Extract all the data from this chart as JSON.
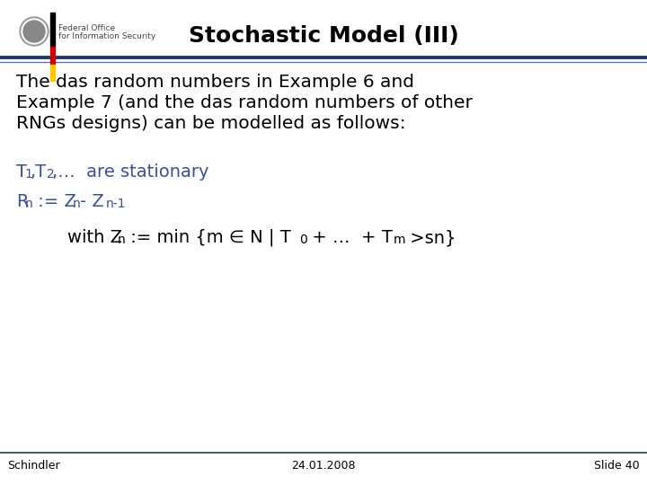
{
  "title": "Stochastic Model (III)",
  "title_fontsize": 18,
  "bg_color": "#ffffff",
  "title_color": "#000000",
  "header_line_color1": "#1f3864",
  "header_line_color2": "#4472c4",
  "body_text_line1": "The das random numbers in Example 6 and",
  "body_text_line2": "Example 7 (and the das random numbers of other",
  "body_text_line3": "RNGs designs) can be modelled as follows:",
  "body_fontsize": 14.5,
  "body_color": "#000000",
  "blue_color": "#3b4f9c",
  "black_color": "#000000",
  "footer_left": "Schindler",
  "footer_center": "24.01.2008",
  "footer_right": "Slide 40",
  "footer_fontsize": 9,
  "math_fontsize": 14,
  "math_sub_fontsize": 10
}
